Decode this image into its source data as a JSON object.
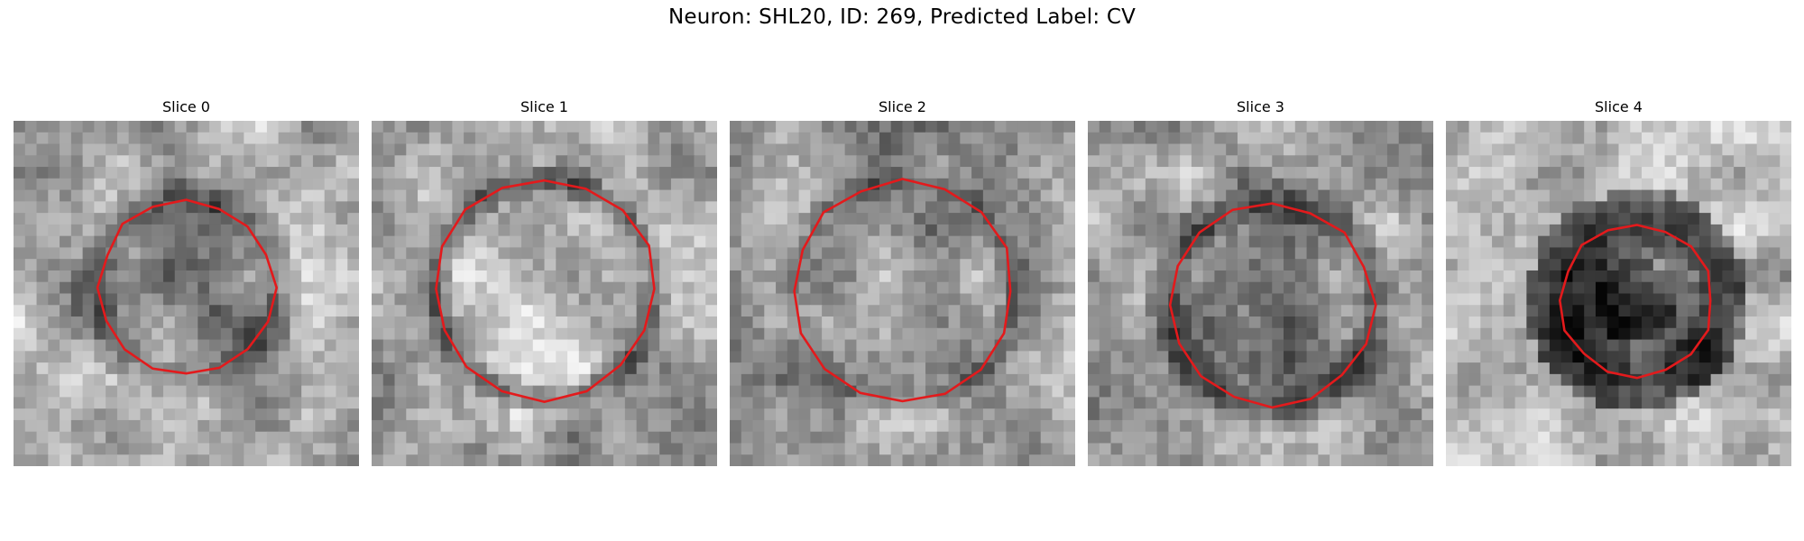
{
  "figure": {
    "title": "Neuron: SHL20, ID: 269, Predicted Label: CV"
  },
  "panels": [
    {
      "title": "Slice 0",
      "contour_color": "#e31a1c",
      "image": "grayscale-em-patch",
      "shape": "dark-ring-with-lighter-center"
    },
    {
      "title": "Slice 1",
      "contour_color": "#e31a1c",
      "image": "grayscale-em-patch",
      "shape": "bright-center-large-circle"
    },
    {
      "title": "Slice 2",
      "contour_color": "#e31a1c",
      "image": "grayscale-em-patch",
      "shape": "medium-gray-large-circle"
    },
    {
      "title": "Slice 3",
      "contour_color": "#e31a1c",
      "image": "grayscale-em-patch",
      "shape": "dark-ring-circle"
    },
    {
      "title": "Slice 4",
      "contour_color": "#e31a1c",
      "image": "grayscale-em-patch",
      "shape": "dark-filled-small-circle"
    }
  ]
}
